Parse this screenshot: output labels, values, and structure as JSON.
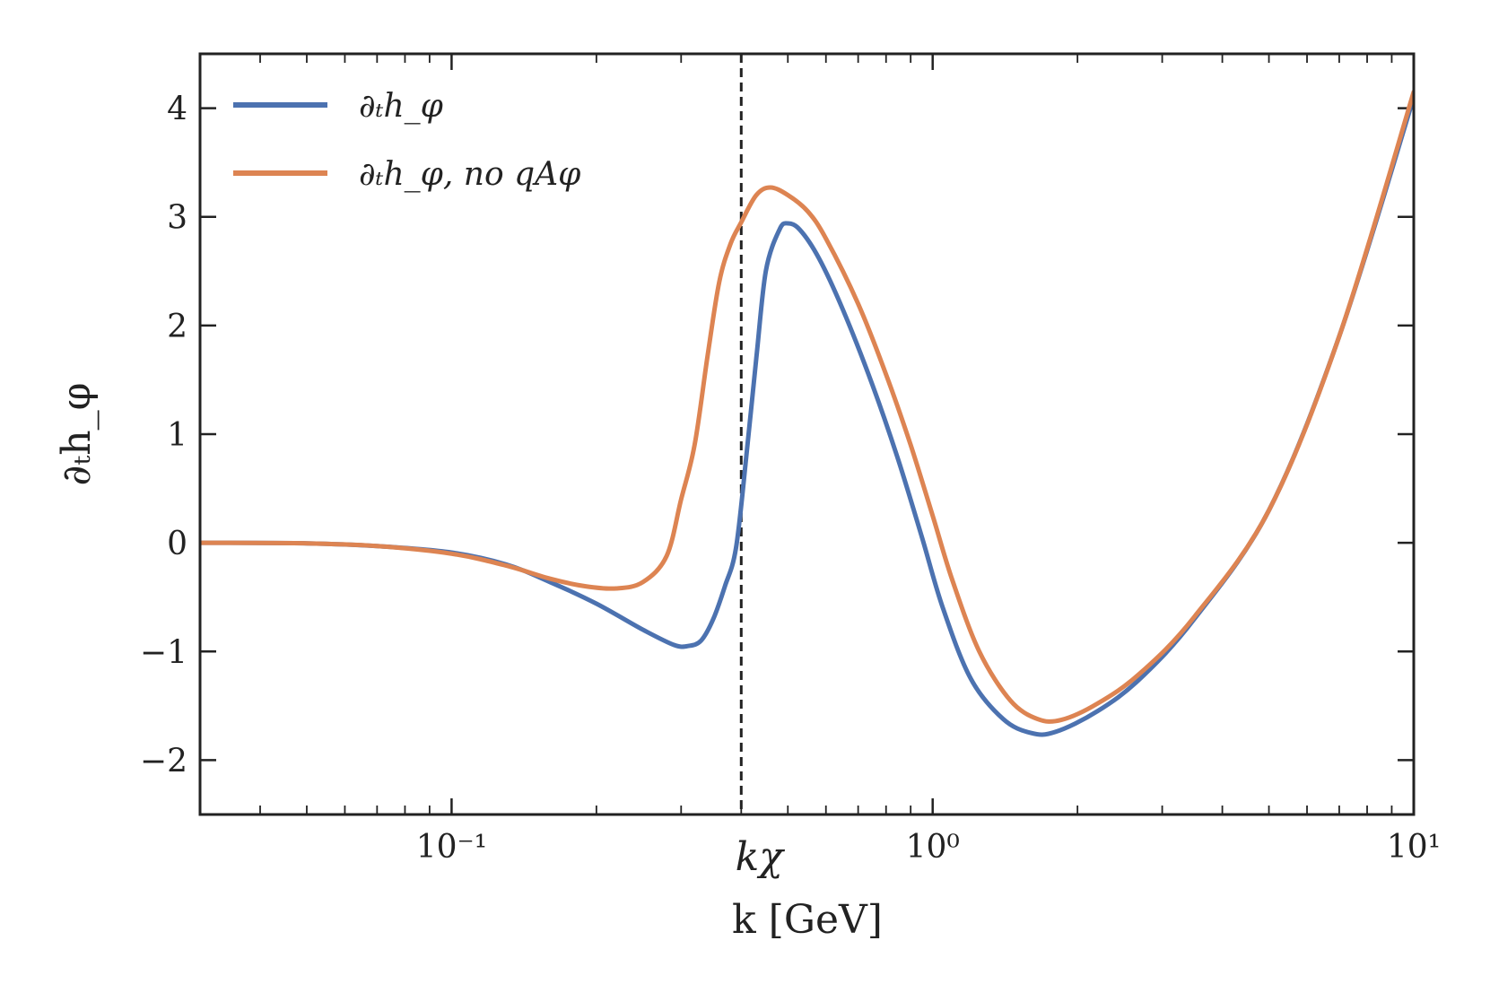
{
  "chart_data": {
    "type": "line",
    "title": "",
    "xlabel": "k [GeV]",
    "ylabel": "∂ₜh_φ",
    "xscale": "log",
    "xlim": [
      0.03,
      10
    ],
    "ylim": [
      -2.5,
      4.5
    ],
    "grid": false,
    "legend_position": "top-left",
    "x_ticks": [
      {
        "value": 0.1,
        "label": "10⁻¹"
      },
      {
        "value": 1,
        "label": "10⁰"
      },
      {
        "value": 10,
        "label": "10¹"
      }
    ],
    "y_ticks": [
      {
        "value": -2,
        "label": "−2"
      },
      {
        "value": -1,
        "label": "−1"
      },
      {
        "value": 0,
        "label": "0"
      },
      {
        "value": 1,
        "label": "1"
      },
      {
        "value": 2,
        "label": "2"
      },
      {
        "value": 3,
        "label": "3"
      },
      {
        "value": 4,
        "label": "4"
      }
    ],
    "reference_line": {
      "axis": "x",
      "value": 0.4,
      "label": "kχ",
      "style": "dashed"
    },
    "series": [
      {
        "name": "∂ₜh_φ",
        "color": "#4c72b0",
        "points": [
          [
            0.03,
            0.0
          ],
          [
            0.05,
            -0.005
          ],
          [
            0.07,
            -0.03
          ],
          [
            0.1,
            -0.09
          ],
          [
            0.13,
            -0.2
          ],
          [
            0.16,
            -0.36
          ],
          [
            0.2,
            -0.56
          ],
          [
            0.25,
            -0.8
          ],
          [
            0.29,
            -0.94
          ],
          [
            0.31,
            -0.95
          ],
          [
            0.33,
            -0.9
          ],
          [
            0.35,
            -0.7
          ],
          [
            0.37,
            -0.4
          ],
          [
            0.39,
            -0.05
          ],
          [
            0.41,
            0.8
          ],
          [
            0.43,
            1.7
          ],
          [
            0.45,
            2.5
          ],
          [
            0.48,
            2.88
          ],
          [
            0.5,
            2.94
          ],
          [
            0.53,
            2.88
          ],
          [
            0.58,
            2.62
          ],
          [
            0.65,
            2.15
          ],
          [
            0.75,
            1.45
          ],
          [
            0.85,
            0.75
          ],
          [
            0.95,
            0.05
          ],
          [
            1.05,
            -0.6
          ],
          [
            1.2,
            -1.25
          ],
          [
            1.4,
            -1.62
          ],
          [
            1.6,
            -1.75
          ],
          [
            1.8,
            -1.74
          ],
          [
            2.2,
            -1.55
          ],
          [
            2.7,
            -1.25
          ],
          [
            3.5,
            -0.7
          ],
          [
            5.0,
            0.3
          ],
          [
            7.0,
            1.9
          ],
          [
            10.0,
            4.1
          ]
        ]
      },
      {
        "name": "∂ₜh_φ, no qAφ",
        "color": "#dd8452",
        "points": [
          [
            0.03,
            0.0
          ],
          [
            0.05,
            -0.005
          ],
          [
            0.07,
            -0.03
          ],
          [
            0.1,
            -0.1
          ],
          [
            0.13,
            -0.21
          ],
          [
            0.16,
            -0.33
          ],
          [
            0.19,
            -0.4
          ],
          [
            0.22,
            -0.42
          ],
          [
            0.25,
            -0.36
          ],
          [
            0.28,
            -0.12
          ],
          [
            0.3,
            0.4
          ],
          [
            0.32,
            0.9
          ],
          [
            0.34,
            1.7
          ],
          [
            0.36,
            2.4
          ],
          [
            0.38,
            2.75
          ],
          [
            0.4,
            2.95
          ],
          [
            0.43,
            3.2
          ],
          [
            0.46,
            3.27
          ],
          [
            0.5,
            3.2
          ],
          [
            0.55,
            3.05
          ],
          [
            0.6,
            2.8
          ],
          [
            0.7,
            2.2
          ],
          [
            0.8,
            1.55
          ],
          [
            0.9,
            0.9
          ],
          [
            1.0,
            0.25
          ],
          [
            1.1,
            -0.35
          ],
          [
            1.25,
            -1.0
          ],
          [
            1.45,
            -1.45
          ],
          [
            1.65,
            -1.62
          ],
          [
            1.85,
            -1.63
          ],
          [
            2.2,
            -1.48
          ],
          [
            2.7,
            -1.2
          ],
          [
            3.5,
            -0.68
          ],
          [
            5.0,
            0.3
          ],
          [
            7.0,
            1.9
          ],
          [
            10.0,
            4.15
          ]
        ]
      }
    ]
  }
}
